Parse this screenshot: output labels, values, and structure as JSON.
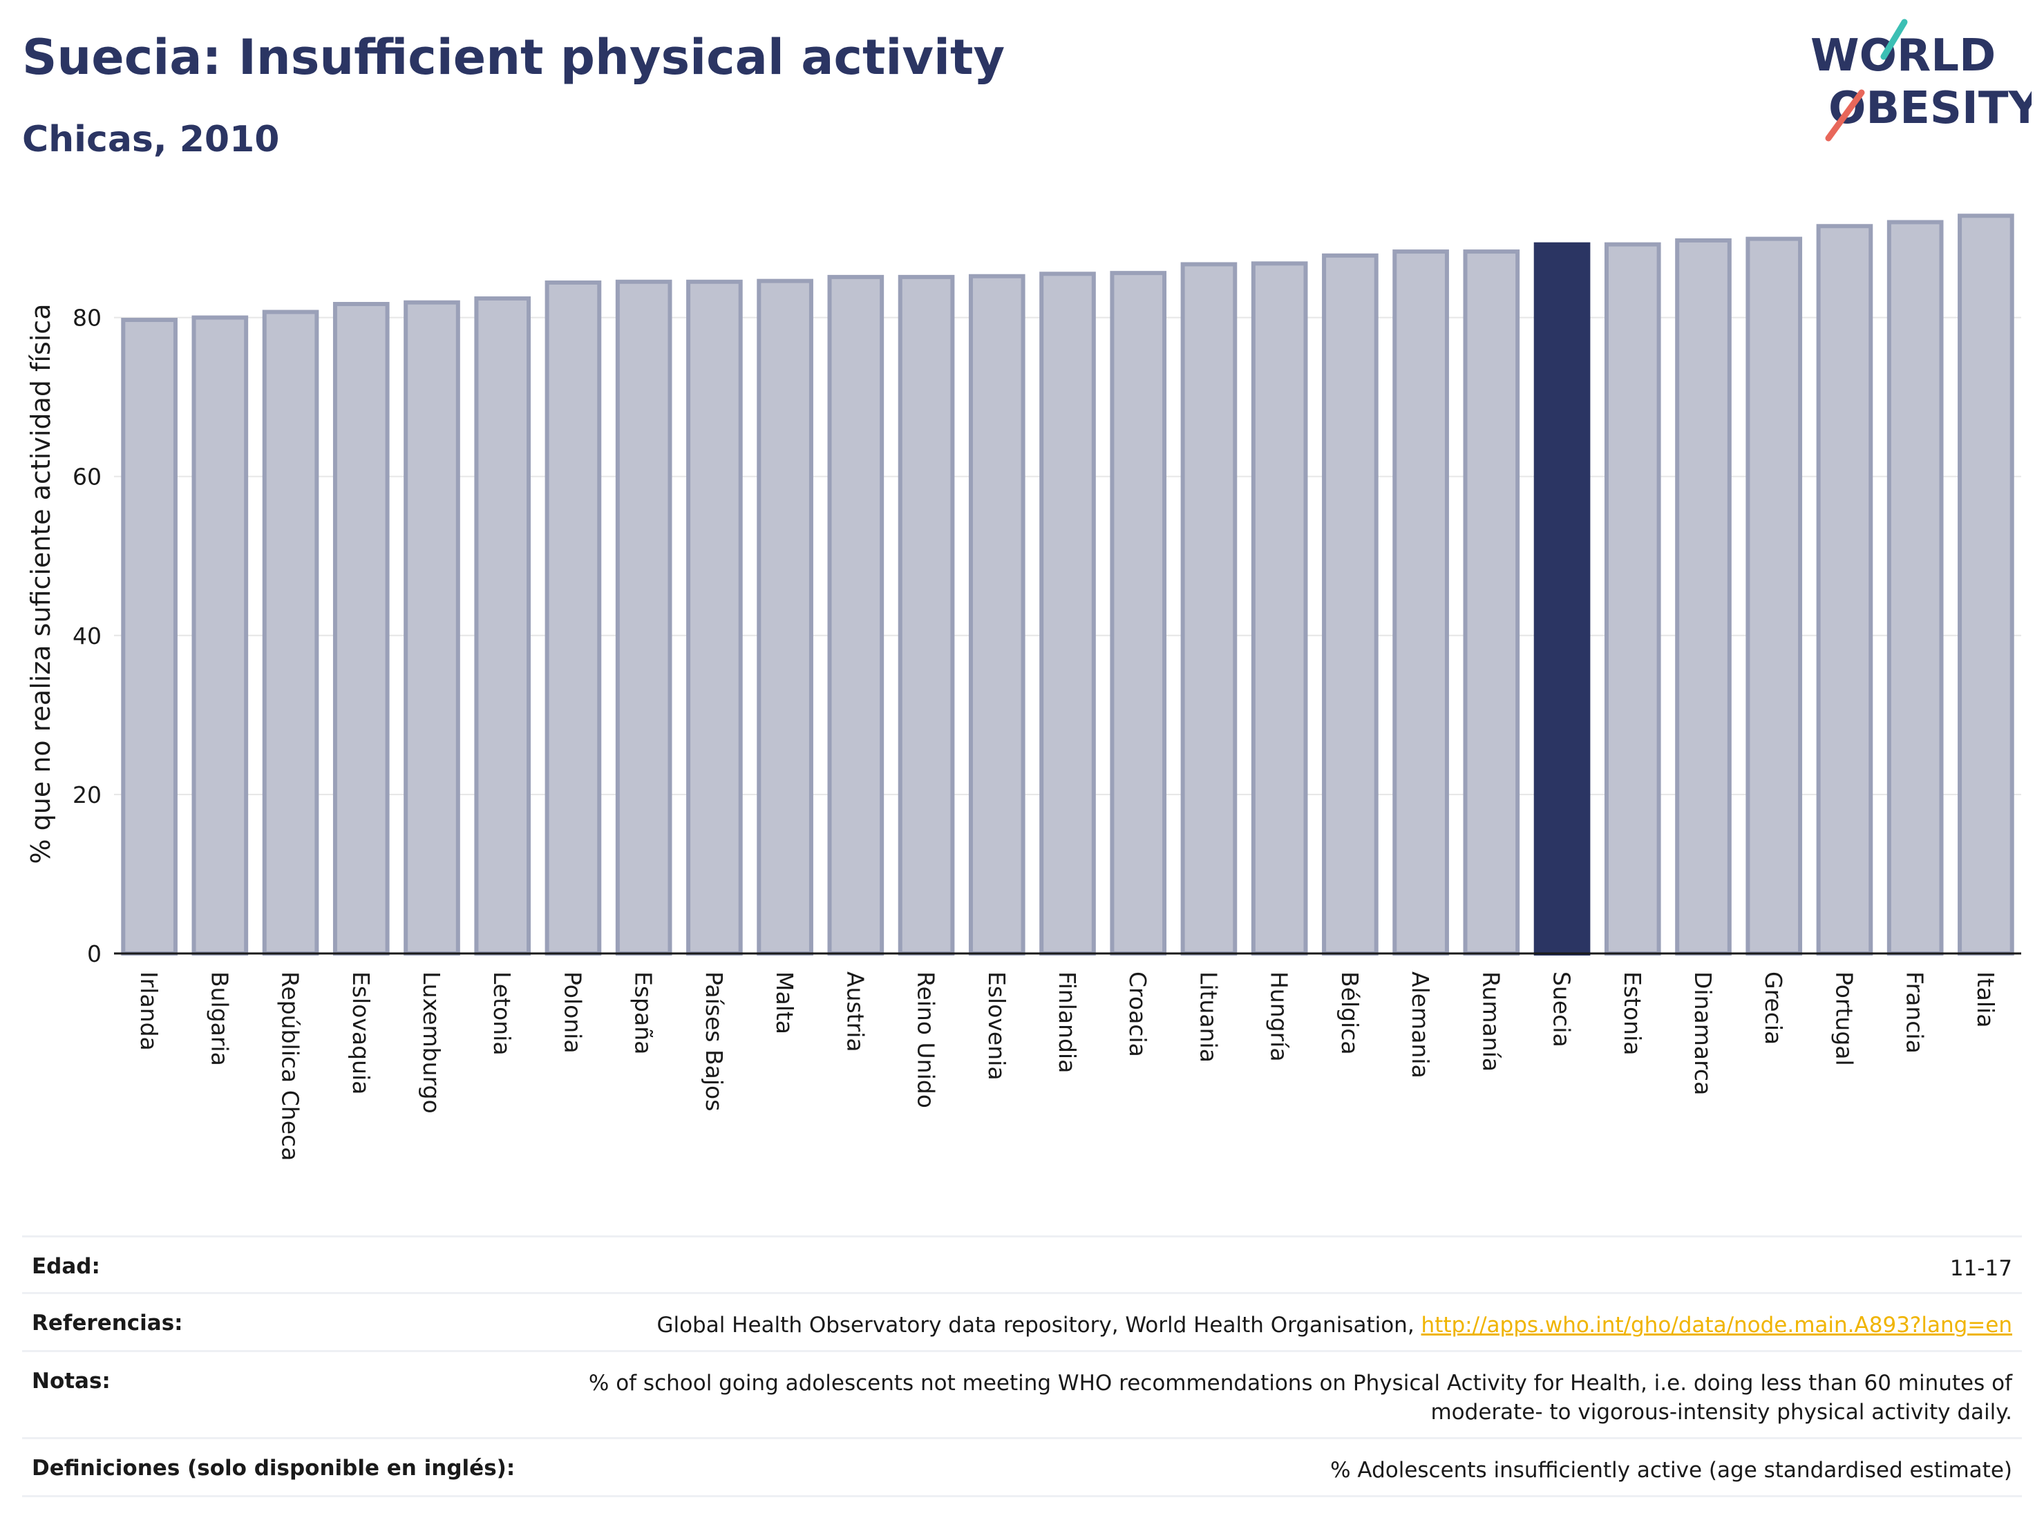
{
  "header": {
    "title": "Suecia: Insufficient physical activity",
    "subtitle": "Chicas, 2010"
  },
  "logo": {
    "line1": "WORLD",
    "line2": "OBESITY",
    "accent_teal": "#3bbfb4",
    "accent_coral": "#e8675a"
  },
  "colors": {
    "bar": "#bfc2d0",
    "bar_border": "#9aa0b8",
    "highlight": "#2b3563"
  },
  "chart_data": {
    "type": "bar",
    "title": "Suecia: Insufficient physical activity",
    "subtitle": "Chicas, 2010",
    "ylabel": "% que no realiza suficiente actividad física",
    "xlabel": "",
    "ylim": [
      0,
      93
    ],
    "yticks": [
      0,
      20,
      40,
      60,
      80
    ],
    "grid": true,
    "highlight": "Suecia",
    "categories": [
      "Irlanda",
      "Bulgaria",
      "República Checa",
      "Eslovaquia",
      "Luxemburgo",
      "Letonia",
      "Polonia",
      "España",
      "Países Bajos",
      "Malta",
      "Austria",
      "Reino Unido",
      "Eslovenia",
      "Finlandia",
      "Croacia",
      "Lituania",
      "Hungría",
      "Bélgica",
      "Alemania",
      "Rumanía",
      "Suecia",
      "Estonia",
      "Dinamarca",
      "Grecia",
      "Portugal",
      "Francia",
      "Italia"
    ],
    "values": [
      79.7,
      80.0,
      80.7,
      81.7,
      81.9,
      82.4,
      84.4,
      84.5,
      84.5,
      84.6,
      85.1,
      85.1,
      85.2,
      85.5,
      85.6,
      86.7,
      86.8,
      87.8,
      88.3,
      88.3,
      89.2,
      89.2,
      89.7,
      89.9,
      91.5,
      92.0,
      92.8
    ]
  },
  "meta": {
    "edad_label": "Edad:",
    "edad_value": "11-17",
    "ref_label": "Referencias:",
    "ref_text": "Global Health Observatory data repository, World Health Organisation,",
    "ref_link": "http://apps.who.int/gho/data/node.main.A893?lang=en",
    "notas_label": "Notas:",
    "notas_line1": "% of school going adolescents not meeting WHO recommendations on Physical Activity for Health, i.e. doing less than 60 minutes of",
    "notas_line2": "moderate- to vigorous-intensity physical activity daily.",
    "def_label": "Definiciones (solo disponible en inglés):",
    "def_value": "% Adolescents insufficiently active (age standardised estimate)"
  }
}
